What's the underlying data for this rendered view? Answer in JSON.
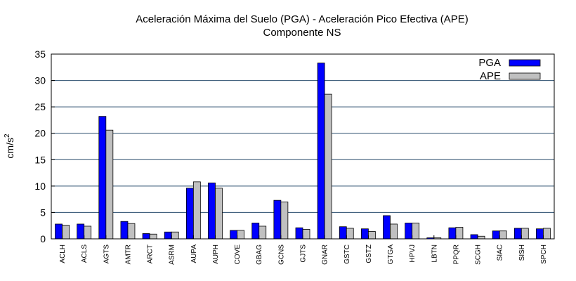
{
  "chart_data": {
    "type": "bar",
    "title": "Aceleración Máxima del Suelo (PGA) -  Aceleración Pico Efectiva (APE)",
    "subtitle": "Componente NS",
    "xlabel": "",
    "ylabel": "cm/s",
    "ylabel_sup": "2",
    "ylim": [
      0,
      35
    ],
    "yticks": [
      "0",
      "5",
      "10",
      "15",
      "20",
      "25",
      "30",
      "35"
    ],
    "grid": true,
    "legend_position": "top-right",
    "categories": [
      "ACLH",
      "ACLS",
      "AGTS",
      "AMTR",
      "ARCT",
      "ASRM",
      "AUPA",
      "AUPH",
      "COVE",
      "GBAG",
      "GCNS",
      "GJTS",
      "GNAR",
      "GSTC",
      "GSTZ",
      "GTGA",
      "HPVJ",
      "LBTN",
      "PPQR",
      "SCGH",
      "SIAC",
      "SISH",
      "SPCH"
    ],
    "series": [
      {
        "name": "PGA",
        "color": "#0000ff",
        "values": [
          2.8,
          2.8,
          23.2,
          3.3,
          1.0,
          1.3,
          9.6,
          10.6,
          1.6,
          3.0,
          7.3,
          2.1,
          33.3,
          2.3,
          1.9,
          4.4,
          3.0,
          0.2,
          2.1,
          0.8,
          1.5,
          2.0,
          1.9
        ]
      },
      {
        "name": "APE",
        "color": "#c0c0c0",
        "values": [
          2.6,
          2.4,
          20.6,
          2.9,
          0.9,
          1.3,
          10.8,
          9.6,
          1.6,
          2.4,
          7.0,
          1.8,
          27.4,
          2.0,
          1.4,
          2.8,
          3.0,
          0.2,
          2.2,
          0.5,
          1.5,
          2.0,
          2.0
        ]
      }
    ]
  }
}
